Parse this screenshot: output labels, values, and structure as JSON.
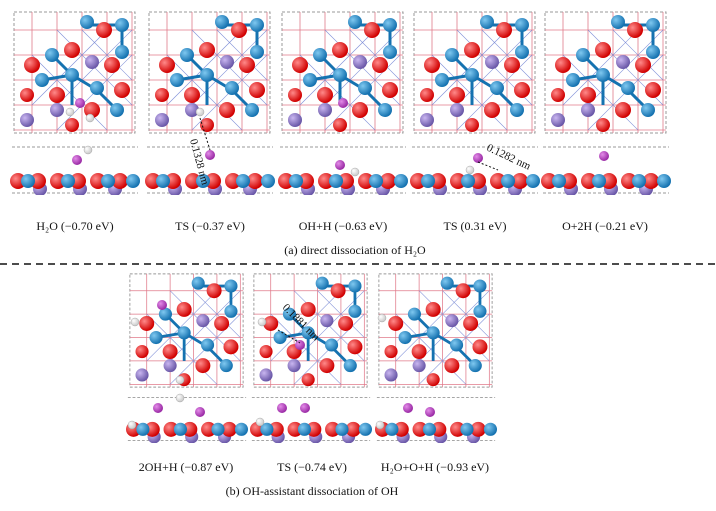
{
  "section_a": {
    "caption": "(a) direct dissociation of H₂O",
    "states": [
      "H₂O (−0.70 eV)",
      "TS (−0.37 eV)",
      "OH+H (−0.63 eV)",
      "TS (0.31 eV)",
      "O+2H (−0.21 eV)"
    ],
    "distances": [
      "0.1328 nm",
      "0.1282 nm"
    ]
  },
  "section_b": {
    "caption": "(b) OH-assistant dissociation of OH",
    "states": [
      "2OH+H (−0.87 eV)",
      "TS (−0.74 eV)",
      "H₂O+O+H (−0.93 eV)"
    ],
    "distances": [
      "0.1881 nm"
    ]
  }
}
